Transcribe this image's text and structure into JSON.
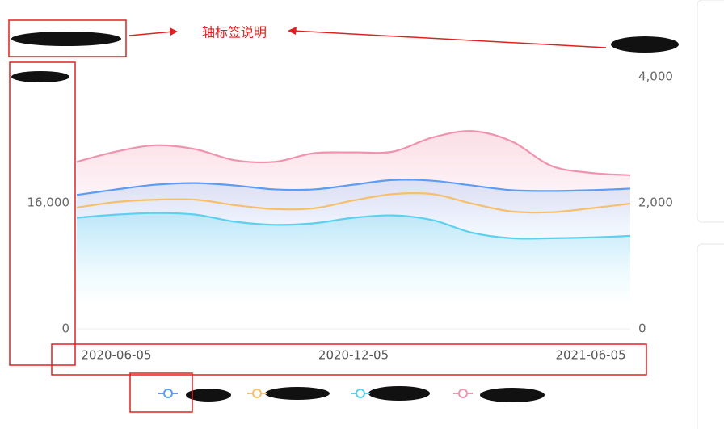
{
  "annotation": "轴标签说明",
  "chart_data": {
    "type": "line",
    "categories": [
      null,
      "2020-06-05",
      null,
      null,
      null,
      null,
      null,
      "2020-12-05",
      null,
      null,
      null,
      null,
      null,
      "2021-06-05",
      null
    ],
    "series": [
      {
        "color": "#5b9cf5",
        "values": [
          17000,
          17700,
          18300,
          18500,
          18200,
          17700,
          17700,
          18300,
          18900,
          18800,
          18200,
          17600,
          17500,
          17600,
          17800
        ]
      },
      {
        "color": "#f5bf6c",
        "values": [
          15400,
          16100,
          16400,
          16400,
          15700,
          15200,
          15300,
          16300,
          17100,
          17100,
          15900,
          14900,
          14800,
          15300,
          15900
        ]
      },
      {
        "color": "#5bd0ef",
        "values": [
          14100,
          14500,
          14700,
          14500,
          13600,
          13200,
          13400,
          14100,
          14400,
          13800,
          12200,
          11500,
          11500,
          11600,
          11800
        ]
      },
      {
        "color": "#f093ae",
        "values": [
          21200,
          22500,
          23300,
          22800,
          21400,
          21200,
          22300,
          22400,
          22500,
          24300,
          25100,
          23800,
          20700,
          19800,
          19500
        ]
      }
    ],
    "ylim": [
      0,
      32000
    ],
    "yticks": [
      0,
      {
        "value": 16000,
        "label": "16,000"
      }
    ],
    "y2lim": [
      0,
      4000
    ],
    "y2ticks": [
      0,
      {
        "value": 2000,
        "label": "2,000"
      },
      {
        "value": 4000,
        "label": "4,000"
      }
    ]
  }
}
